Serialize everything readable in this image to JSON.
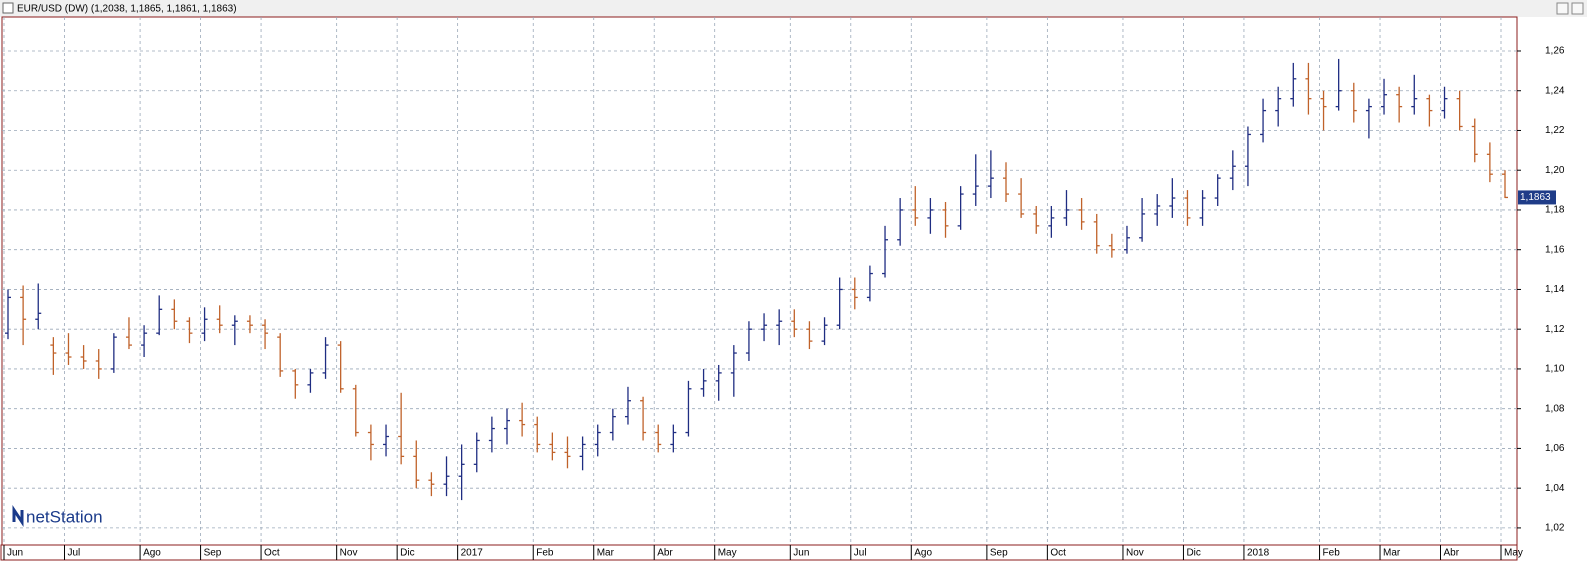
{
  "chart_data": {
    "type": "ohlc",
    "title": "EUR/USD (DW) (1,2038, 1,1865, 1,1861, 1,1863)",
    "logo": "netStation",
    "categories": [
      "Jun",
      null,
      null,
      null,
      "Jul",
      null,
      null,
      null,
      null,
      "Ago",
      null,
      null,
      null,
      "Sep",
      null,
      null,
      null,
      "Oct",
      null,
      null,
      null,
      null,
      "Nov",
      null,
      null,
      null,
      "Dic",
      null,
      null,
      null,
      "2017",
      null,
      null,
      null,
      null,
      "Feb",
      null,
      null,
      null,
      "Mar",
      null,
      null,
      null,
      "Abr",
      null,
      null,
      null,
      "May",
      null,
      null,
      null,
      null,
      "Jun",
      null,
      null,
      null,
      "Jul",
      null,
      null,
      null,
      "Ago",
      null,
      null,
      null,
      null,
      "Sep",
      null,
      null,
      null,
      "Oct",
      null,
      null,
      null,
      null,
      "Nov",
      null,
      null,
      null,
      "Dic",
      null,
      null,
      null,
      "2018",
      null,
      null,
      null,
      null,
      "Feb",
      null,
      null,
      null,
      "Mar",
      null,
      null,
      null,
      "Abr",
      null,
      null,
      null,
      "May"
    ],
    "open": [
      1.118,
      1.136,
      1.125,
      1.112,
      1.108,
      1.106,
      1.104,
      1.1,
      1.116,
      1.112,
      1.118,
      1.13,
      1.124,
      1.118,
      1.125,
      1.122,
      1.124,
      1.122,
      1.116,
      1.099,
      1.092,
      1.098,
      1.112,
      1.09,
      1.068,
      1.062,
      1.066,
      1.056,
      1.044,
      1.042,
      1.046,
      1.052,
      1.064,
      1.07,
      1.074,
      1.072,
      1.062,
      1.058,
      1.056,
      1.062,
      1.068,
      1.076,
      1.084,
      1.068,
      1.062,
      1.068,
      1.09,
      1.094,
      1.098,
      1.108,
      1.12,
      1.122,
      1.124,
      1.12,
      1.114,
      1.122,
      1.14,
      1.136,
      1.148,
      1.165,
      1.18,
      1.176,
      1.18,
      1.172,
      1.188,
      1.192,
      1.196,
      1.188,
      1.178,
      1.172,
      1.176,
      1.18,
      1.174,
      1.162,
      1.16,
      1.166,
      1.178,
      1.182,
      1.186,
      1.176,
      1.186,
      1.196,
      1.202,
      1.218,
      1.23,
      1.236,
      1.246,
      1.236,
      1.232,
      1.24,
      1.23,
      1.232,
      1.238,
      1.232,
      1.236,
      1.23,
      1.236,
      1.222,
      1.208,
      1.198
    ],
    "high": [
      1.14,
      1.142,
      1.143,
      1.116,
      1.118,
      1.112,
      1.11,
      1.118,
      1.126,
      1.122,
      1.137,
      1.135,
      1.126,
      1.131,
      1.132,
      1.127,
      1.127,
      1.125,
      1.118,
      1.1,
      1.1,
      1.116,
      1.114,
      1.092,
      1.072,
      1.072,
      1.088,
      1.064,
      1.048,
      1.056,
      1.062,
      1.068,
      1.076,
      1.08,
      1.083,
      1.076,
      1.068,
      1.066,
      1.066,
      1.072,
      1.08,
      1.091,
      1.086,
      1.072,
      1.072,
      1.094,
      1.1,
      1.102,
      1.112,
      1.124,
      1.128,
      1.13,
      1.13,
      1.124,
      1.126,
      1.146,
      1.146,
      1.152,
      1.172,
      1.186,
      1.192,
      1.186,
      1.184,
      1.192,
      1.208,
      1.21,
      1.204,
      1.196,
      1.182,
      1.182,
      1.19,
      1.186,
      1.178,
      1.168,
      1.172,
      1.186,
      1.188,
      1.196,
      1.19,
      1.19,
      1.198,
      1.21,
      1.222,
      1.236,
      1.242,
      1.254,
      1.254,
      1.24,
      1.256,
      1.244,
      1.236,
      1.246,
      1.242,
      1.248,
      1.238,
      1.242,
      1.24,
      1.226,
      1.214,
      1.2
    ],
    "low": [
      1.115,
      1.112,
      1.12,
      1.097,
      1.102,
      1.1,
      1.095,
      1.098,
      1.11,
      1.106,
      1.117,
      1.12,
      1.113,
      1.114,
      1.118,
      1.112,
      1.118,
      1.11,
      1.096,
      1.085,
      1.088,
      1.095,
      1.088,
      1.066,
      1.054,
      1.056,
      1.052,
      1.04,
      1.036,
      1.036,
      1.034,
      1.048,
      1.058,
      1.062,
      1.066,
      1.058,
      1.054,
      1.05,
      1.049,
      1.056,
      1.064,
      1.072,
      1.064,
      1.058,
      1.058,
      1.066,
      1.086,
      1.084,
      1.086,
      1.104,
      1.114,
      1.112,
      1.116,
      1.11,
      1.112,
      1.12,
      1.13,
      1.134,
      1.146,
      1.162,
      1.172,
      1.168,
      1.166,
      1.17,
      1.182,
      1.186,
      1.184,
      1.176,
      1.168,
      1.166,
      1.172,
      1.17,
      1.158,
      1.156,
      1.158,
      1.164,
      1.172,
      1.176,
      1.172,
      1.172,
      1.182,
      1.19,
      1.192,
      1.214,
      1.222,
      1.232,
      1.228,
      1.22,
      1.23,
      1.224,
      1.216,
      1.228,
      1.224,
      1.228,
      1.222,
      1.226,
      1.22,
      1.204,
      1.194,
      1.186
    ],
    "close": [
      1.136,
      1.125,
      1.128,
      1.108,
      1.106,
      1.104,
      1.1,
      1.116,
      1.112,
      1.118,
      1.13,
      1.124,
      1.118,
      1.125,
      1.122,
      1.124,
      1.122,
      1.118,
      1.099,
      1.092,
      1.098,
      1.112,
      1.09,
      1.068,
      1.062,
      1.066,
      1.056,
      1.044,
      1.042,
      1.046,
      1.052,
      1.064,
      1.07,
      1.074,
      1.072,
      1.062,
      1.058,
      1.056,
      1.062,
      1.068,
      1.076,
      1.084,
      1.068,
      1.062,
      1.068,
      1.09,
      1.094,
      1.098,
      1.108,
      1.12,
      1.122,
      1.124,
      1.12,
      1.114,
      1.122,
      1.14,
      1.136,
      1.148,
      1.165,
      1.18,
      1.176,
      1.18,
      1.172,
      1.188,
      1.192,
      1.196,
      1.188,
      1.178,
      1.172,
      1.176,
      1.18,
      1.174,
      1.162,
      1.16,
      1.166,
      1.178,
      1.182,
      1.186,
      1.176,
      1.186,
      1.196,
      1.202,
      1.218,
      1.23,
      1.236,
      1.246,
      1.236,
      1.232,
      1.24,
      1.23,
      1.232,
      1.238,
      1.232,
      1.236,
      1.23,
      1.236,
      1.222,
      1.208,
      1.198,
      1.1863
    ],
    "last_value_label": "1,1863",
    "up_color": "#1f2d82",
    "down_color": "#c0622a",
    "ylim": [
      1.0114,
      1.2771
    ],
    "yticks": [
      {
        "value": 1.02,
        "label": "1,02"
      },
      {
        "value": 1.04,
        "label": "1,04"
      },
      {
        "value": 1.06,
        "label": "1,06"
      },
      {
        "value": 1.08,
        "label": "1,08"
      },
      {
        "value": 1.1,
        "label": "1,10"
      },
      {
        "value": 1.12,
        "label": "1,12"
      },
      {
        "value": 1.14,
        "label": "1,14"
      },
      {
        "value": 1.16,
        "label": "1,16"
      },
      {
        "value": 1.18,
        "label": "1,18"
      },
      {
        "value": 1.2,
        "label": "1,20"
      },
      {
        "value": 1.22,
        "label": "1,22"
      },
      {
        "value": 1.24,
        "label": "1,24"
      },
      {
        "value": 1.26,
        "label": "1,26"
      }
    ],
    "grid": true
  }
}
